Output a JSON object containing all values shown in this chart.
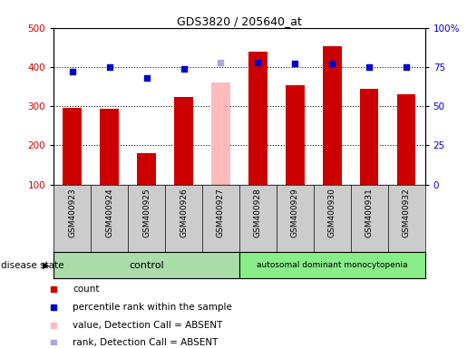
{
  "title": "GDS3820 / 205640_at",
  "samples": [
    "GSM400923",
    "GSM400924",
    "GSM400925",
    "GSM400926",
    "GSM400927",
    "GSM400928",
    "GSM400929",
    "GSM400930",
    "GSM400931",
    "GSM400932"
  ],
  "counts": [
    295,
    293,
    180,
    323,
    null,
    440,
    353,
    452,
    345,
    330
  ],
  "absent_value": [
    null,
    null,
    null,
    null,
    360,
    null,
    null,
    null,
    null,
    null
  ],
  "percentile_ranks": [
    72,
    75,
    68,
    74,
    null,
    78,
    77,
    77,
    75,
    75
  ],
  "absent_rank": [
    null,
    null,
    null,
    null,
    78,
    null,
    null,
    null,
    null,
    null
  ],
  "ylim_left": [
    100,
    500
  ],
  "ylim_right": [
    0,
    100
  ],
  "yticks_left": [
    100,
    200,
    300,
    400,
    500
  ],
  "yticks_right": [
    0,
    25,
    50,
    75,
    100
  ],
  "yticklabels_right": [
    "0",
    "25",
    "50",
    "75",
    "100%"
  ],
  "bar_color": "#cc0000",
  "absent_bar_color": "#ffbbbb",
  "dot_color": "#0000cc",
  "absent_dot_color": "#aaaadd",
  "n_control": 5,
  "n_disease": 5,
  "control_label": "control",
  "disease_label": "autosomal dominant monocytopenia",
  "group_label": "disease state",
  "legend_entries": [
    {
      "label": "count",
      "color": "#cc0000"
    },
    {
      "label": "percentile rank within the sample",
      "color": "#0000cc"
    },
    {
      "label": "value, Detection Call = ABSENT",
      "color": "#ffbbbb"
    },
    {
      "label": "rank, Detection Call = ABSENT",
      "color": "#aaaadd"
    }
  ],
  "label_bg_color": "#cccccc",
  "control_bg_color": "#aaddaa",
  "disease_bg_color": "#88ee88"
}
